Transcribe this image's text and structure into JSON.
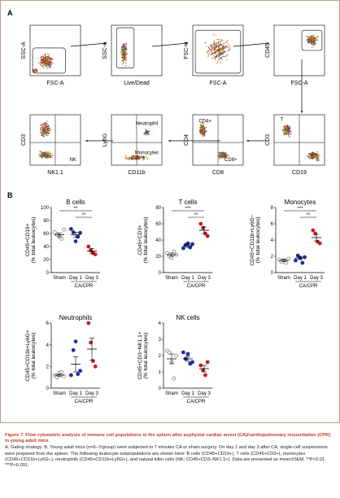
{
  "panel_a": {
    "label": "A",
    "plots": [
      {
        "x": "FSC-A",
        "y": "SSC-A"
      },
      {
        "x": "Live/Dead",
        "y": "SSC-A"
      },
      {
        "x": "FSC-A",
        "y": "FSC-H"
      },
      {
        "x": "FSC-A",
        "y": "CD45"
      },
      {
        "x": "NK1.1",
        "y": "CD3",
        "gate": "NK"
      },
      {
        "x": "CD11b",
        "y": "Ly6G",
        "gates": [
          "Neutrophil",
          "Monocytes"
        ]
      },
      {
        "x": "CD8",
        "y": "CD4",
        "gates": [
          "CD4+",
          "CD8+"
        ]
      },
      {
        "x": "CD19",
        "y": "CD3",
        "gates": [
          "T",
          "B"
        ]
      }
    ]
  },
  "panel_b": {
    "label": "B",
    "x_group_label": "CA/CPR",
    "chart_data": [
      {
        "type": "scatter",
        "title": "B cells",
        "ylabel_main": "CD45+CD19+",
        "ylabel_sub": "(% total leukocytes)",
        "ylim": [
          0,
          100
        ],
        "yticks": [
          0,
          20,
          40,
          60,
          80,
          100
        ],
        "categories": [
          "Sham",
          "Day 1",
          "Day 3"
        ],
        "points": [
          [
            62,
            58,
            55,
            52,
            66
          ],
          [
            67,
            62,
            48,
            55,
            61
          ],
          [
            40,
            34,
            30,
            28
          ]
        ],
        "means": [
          58,
          58,
          33
        ],
        "sem": [
          3,
          4,
          4
        ],
        "significance": [
          {
            "from": 0,
            "to": 2,
            "label": "**"
          },
          {
            "from": 1,
            "to": 2,
            "label": "**"
          }
        ]
      },
      {
        "type": "scatter",
        "title": "T cells",
        "ylabel_main": "CD45+CD3+",
        "ylabel_sub": "(% total leukocytes)",
        "ylim": [
          0,
          80
        ],
        "yticks": [
          0,
          20,
          40,
          60,
          80
        ],
        "categories": [
          "Sham",
          "Day 1",
          "Day 3"
        ],
        "points": [
          [
            24,
            20,
            18,
            26,
            22
          ],
          [
            30,
            34,
            36,
            31,
            35
          ],
          [
            60,
            55,
            48,
            45
          ]
        ],
        "means": [
          22,
          33,
          52
        ],
        "sem": [
          2,
          2,
          4
        ],
        "significance": [
          {
            "from": 0,
            "to": 2,
            "label": "***"
          },
          {
            "from": 1,
            "to": 2,
            "label": "**"
          }
        ]
      },
      {
        "type": "scatter",
        "title": "Monocytes",
        "ylabel_main": "CD45+CD11b+Ly6G−",
        "ylabel_sub": "(% total leukocytes)",
        "ylim": [
          0,
          8
        ],
        "yticks": [
          0,
          2,
          4,
          6,
          8
        ],
        "categories": [
          "Sham",
          "Day 1",
          "Day 3"
        ],
        "points": [
          [
            1.6,
            1.3,
            1.5,
            1.2,
            1.7
          ],
          [
            1.5,
            2.1,
            1.8,
            1.2,
            1.9
          ],
          [
            5.2,
            4.8,
            3.8,
            3.6
          ]
        ],
        "means": [
          1.5,
          1.8,
          4.3
        ],
        "sem": [
          0.15,
          0.2,
          0.4
        ],
        "significance": [
          {
            "from": 0,
            "to": 2,
            "label": "***"
          },
          {
            "from": 1,
            "to": 2,
            "label": "**"
          }
        ]
      },
      {
        "type": "scatter",
        "title": "Neutrophils",
        "ylabel_main": "CD45+CD11b+Ly6G+",
        "ylabel_sub": "(% total leukocytes)",
        "ylim": [
          0,
          6
        ],
        "yticks": [
          0,
          2,
          4,
          6
        ],
        "categories": [
          "Sham",
          "Day 1",
          "Day 3"
        ],
        "points": [
          [
            1.2,
            1.0,
            1.4,
            1.5,
            1.1
          ],
          [
            1.2,
            3.5,
            4.3,
            1.3,
            1.6
          ],
          [
            6.0,
            4.2,
            2.5,
            2.0
          ]
        ],
        "means": [
          1.2,
          2.2,
          3.6
        ],
        "sem": [
          0.1,
          0.7,
          1.0
        ],
        "significance": []
      },
      {
        "type": "scatter",
        "title": "NK cells",
        "ylabel_main": "CD45+CD3−NK1.1+",
        "ylabel_sub": "(% total leukocytes)",
        "ylim": [
          0,
          4
        ],
        "yticks": [
          0,
          1,
          2,
          3,
          4
        ],
        "categories": [
          "Sham",
          "Day 1",
          "Day 3"
        ],
        "points": [
          [
            2.3,
            2.2,
            1.6,
            0.6,
            2.0
          ],
          [
            2.2,
            1.8,
            2.1,
            1.5,
            1.6
          ],
          [
            1.4,
            1.1,
            0.8,
            1.6
          ]
        ],
        "means": [
          1.8,
          1.8,
          1.2
        ],
        "sem": [
          0.3,
          0.15,
          0.2
        ],
        "significance": []
      }
    ]
  },
  "colors": {
    "sham": "#808080",
    "day1": "#1f2fa0",
    "day3": "#c81e1e",
    "caption_title": "#c0392b",
    "border": "#c79a8a"
  },
  "caption": {
    "title": "Figure 7.  Flow cytometric analysis of immune cell populations in the spleen after asphyxial cardiac arrest (CA)/cardiopulmonary resuscitation (CPR) in young adult mice.",
    "body": "A, Gating strategy. B, Young adult mice (n=6–7/group) were subjected to 7 minutes CA or sham surgery. On day 1 and day 3 after CA, single-cell suspensions were prepared from the spleen. The following leukocyte subpopulations are shown here: B cells (CD45+CD19+), T cells (CD45+CD3+), monocytes (CD45+CD11b+Ly6G−), neutrophils (CD45+CD11b+Ly6G+), and natural killer cells (NK; CD45+CD3−NK1.1+). Data are presented as mean±SEM. **P<0.01. ***P<0.001."
  }
}
